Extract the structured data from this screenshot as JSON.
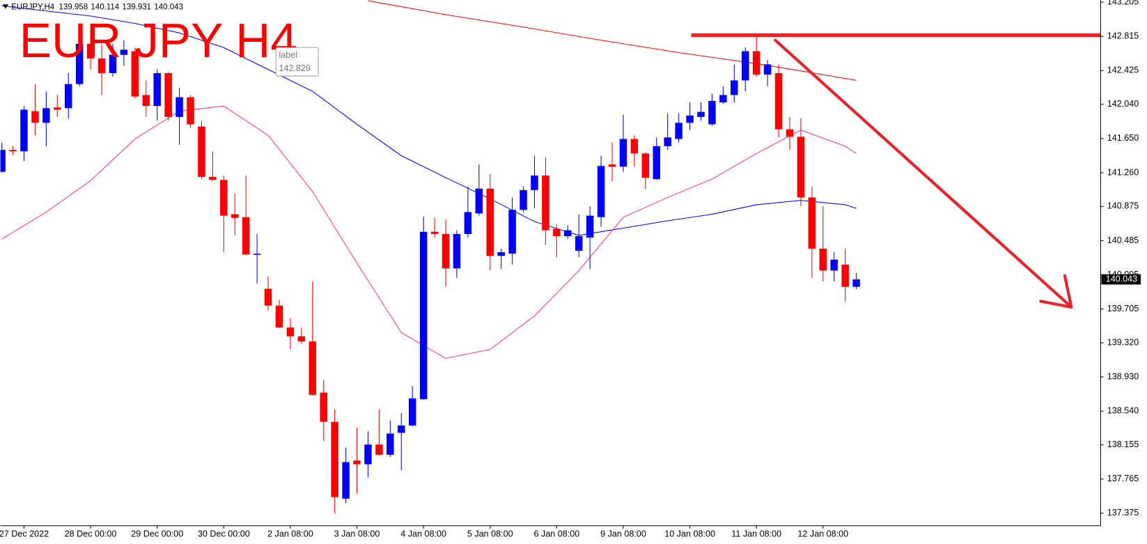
{
  "chart_data": {
    "type": "candlestick",
    "title": "EUR JPY H4",
    "symbol": "EURJPY,H4",
    "categories": [
      null,
      null,
      "27 Dec 2022",
      null,
      null,
      null,
      null,
      null,
      "28 Dec 00:00",
      null,
      null,
      null,
      null,
      null,
      "29 Dec 00:00",
      null,
      null,
      null,
      null,
      null,
      "30 Dec 00:00",
      null,
      null,
      null,
      null,
      null,
      "2 Jan 08:00",
      null,
      null,
      null,
      null,
      null,
      "3 Jan 08:00",
      null,
      null,
      null,
      null,
      null,
      "4 Jan 08:00",
      null,
      null,
      null,
      null,
      null,
      "5 Jan 08:00",
      null,
      null,
      null,
      null,
      null,
      "6 Jan 08:00",
      null,
      null,
      null,
      null,
      null,
      "9 Jan 08:00",
      null,
      null,
      null,
      null,
      null,
      "10 Jan 08:00",
      null,
      null,
      null,
      null,
      null,
      "11 Jan 08:00",
      null,
      null,
      null,
      null,
      null,
      "12 Jan 08:00",
      null,
      null,
      null
    ],
    "open": [
      141.27,
      141.52,
      141.504,
      141.962,
      141.829,
      142.004,
      141.996,
      142.271,
      142.73,
      142.563,
      142.396,
      142.605,
      142.646,
      142.146,
      142.021,
      142.396,
      141.896,
      142.121,
      141.787,
      141.212,
      141.178,
      140.786,
      140.753,
      140.327,
      139.936,
      139.744,
      139.494,
      139.394,
      139.335,
      138.751,
      138.418,
      137.542,
      137.976,
      137.934,
      138.159,
      138.043,
      138.293,
      138.376,
      138.676,
      140.586,
      140.561,
      140.169,
      140.561,
      140.795,
      141.078,
      140.311,
      140.336,
      140.836,
      141.062,
      141.228,
      140.62,
      140.536,
      140.369,
      140.52,
      140.753,
      141.354,
      141.329,
      141.645,
      141.479,
      141.187,
      141.562,
      141.645,
      141.829,
      141.896,
      141.812,
      142.062,
      142.146,
      142.313,
      142.646,
      142.379,
      142.396,
      141.754,
      141.67,
      140.978,
      140.394,
      140.144,
      140.211,
      139.958
    ],
    "high": [
      141.604,
      141.562,
      142.021,
      142.271,
      142.188,
      142.146,
      142.396,
      142.83,
      142.896,
      142.73,
      142.73,
      142.771,
      142.688,
      142.313,
      142.438,
      142.413,
      142.229,
      142.146,
      141.854,
      141.504,
      141.228,
      141.02,
      141.228,
      140.561,
      140.077,
      139.811,
      139.602,
      139.494,
      140.019,
      138.893,
      138.56,
      138.126,
      138.351,
      138.309,
      138.56,
      138.434,
      138.518,
      138.826,
      140.761,
      140.745,
      140.728,
      140.603,
      141.103,
      141.354,
      141.245,
      140.394,
      140.978,
      141.103,
      141.454,
      141.437,
      140.67,
      140.661,
      140.786,
      140.878,
      141.454,
      141.604,
      141.921,
      141.687,
      141.495,
      141.662,
      141.937,
      141.937,
      142.062,
      142.062,
      142.162,
      142.246,
      142.496,
      142.688,
      142.855,
      142.546,
      142.496,
      141.896,
      141.879,
      141.103,
      140.878,
      140.353,
      140.394,
      140.114
    ],
    "low": [
      141.262,
      141.462,
      141.395,
      141.687,
      141.562,
      141.896,
      141.879,
      142.246,
      142.438,
      142.146,
      142.354,
      142.479,
      142.104,
      141.896,
      141.854,
      141.854,
      141.579,
      141.771,
      141.187,
      141.162,
      140.353,
      140.545,
      140.32,
      139.994,
      139.686,
      139.486,
      139.244,
      139.31,
      138.718,
      138.201,
      137.375,
      137.492,
      137.6,
      137.784,
      138.035,
      138.018,
      137.867,
      138.368,
      138.668,
      140.52,
      139.961,
      140.061,
      140.52,
      140.77,
      140.144,
      140.161,
      140.211,
      140.811,
      140.853,
      140.436,
      140.294,
      140.503,
      140.294,
      140.161,
      140.645,
      141.162,
      141.27,
      141.329,
      141.078,
      141.178,
      141.52,
      141.604,
      141.746,
      141.854,
      141.796,
      142.046,
      142.062,
      142.188,
      142.354,
      142.246,
      141.662,
      141.52,
      140.878,
      140.061,
      140.019,
      140.019,
      139.786,
      139.931
    ],
    "close": [
      141.52,
      141.504,
      141.979,
      141.829,
      141.996,
      141.979,
      142.271,
      142.73,
      142.563,
      142.396,
      142.605,
      142.663,
      142.129,
      142.021,
      142.396,
      141.896,
      142.121,
      141.812,
      141.212,
      141.178,
      140.77,
      140.745,
      140.327,
      140.336,
      139.744,
      139.494,
      139.394,
      139.335,
      138.726,
      138.418,
      137.559,
      137.959,
      137.934,
      138.159,
      138.043,
      138.284,
      138.376,
      138.685,
      140.586,
      140.561,
      140.169,
      140.561,
      140.811,
      141.078,
      140.311,
      140.353,
      140.836,
      141.062,
      141.228,
      140.603,
      140.536,
      140.603,
      140.536,
      140.77,
      141.337,
      141.329,
      141.645,
      141.479,
      141.203,
      141.562,
      141.662,
      141.829,
      141.912,
      141.954,
      142.079,
      142.146,
      142.313,
      142.646,
      142.379,
      142.496,
      141.754,
      141.67,
      140.978,
      140.394,
      140.144,
      140.269,
      139.958,
      140.043
    ],
    "up_color": "#0000ff",
    "down_color": "#ff0000",
    "series": [
      {
        "color": "#0000ff",
        "x": [
          0,
          4,
          8,
          12,
          16,
          20,
          24,
          28,
          32,
          36,
          40,
          44,
          48,
          52,
          56,
          60,
          64,
          68,
          72,
          76,
          77
        ],
        "values": [
          143.163,
          143.105,
          143.047,
          142.963,
          142.855,
          142.688,
          142.438,
          142.188,
          141.812,
          141.454,
          141.203,
          140.962,
          140.703,
          140.545,
          140.628,
          140.711,
          140.786,
          140.895,
          140.945,
          140.895,
          140.853
        ]
      },
      {
        "color": "#ff3399",
        "x": [
          0,
          4,
          8,
          12,
          16,
          20,
          24,
          28,
          32,
          36,
          40,
          44,
          48,
          52,
          56,
          60,
          64,
          68,
          72,
          76,
          77
        ],
        "values": [
          140.503,
          140.811,
          141.17,
          141.645,
          141.962,
          142.021,
          141.687,
          141.045,
          140.228,
          139.435,
          139.143,
          139.244,
          139.627,
          140.144,
          140.753,
          140.978,
          141.187,
          141.479,
          141.746,
          141.562,
          141.479
        ]
      },
      {
        "color": "#ff0000",
        "x": [
          33,
          40,
          47,
          54,
          61,
          68,
          72,
          77
        ],
        "values": [
          143.222,
          143.063,
          142.921,
          142.771,
          142.63,
          142.504,
          142.421,
          142.313
        ]
      }
    ],
    "hline": {
      "label": "label",
      "value": 142.829,
      "color": "#e8232a"
    },
    "ylim": [
      137.233,
      143.23
    ],
    "yticks": [
      143.205,
      142.815,
      142.425,
      {
        "value": 142.04,
        "label": "142.040"
      },
      {
        "value": 141.65,
        "label": "141.650"
      },
      {
        "value": 141.26,
        "label": "141.260"
      },
      140.875,
      140.485,
      140.095,
      139.705,
      {
        "value": 139.32,
        "label": "139.320"
      },
      {
        "value": 138.93,
        "label": "138.930"
      },
      {
        "value": 138.54,
        "label": "138.540"
      },
      138.155,
      137.765,
      137.375
    ]
  }
}
